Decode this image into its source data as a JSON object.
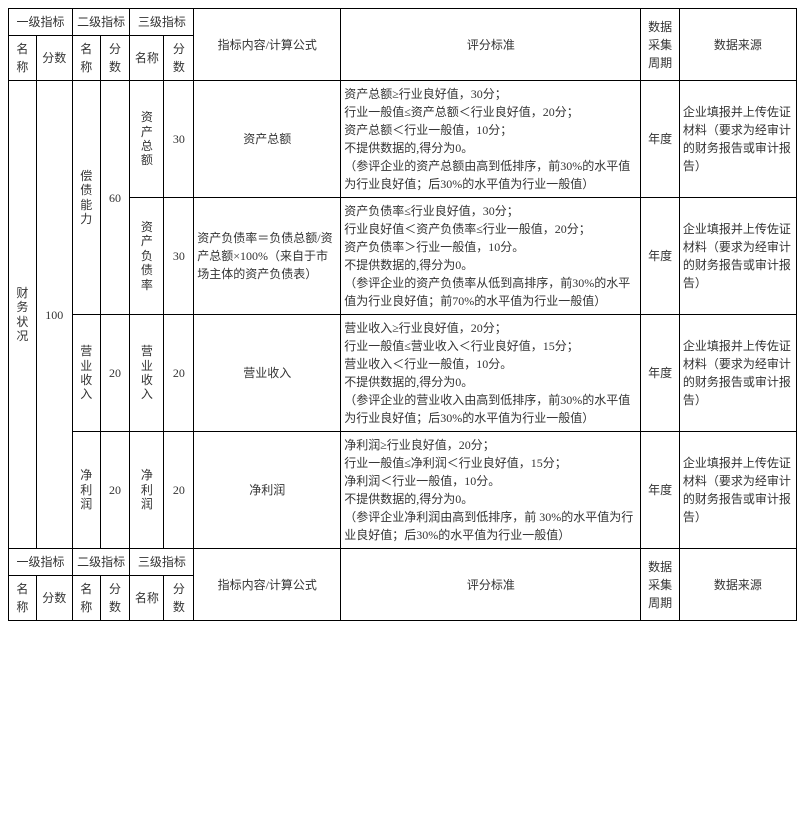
{
  "headers": {
    "l1": "一级指标",
    "l2": "二级指标",
    "l3": "三级指标",
    "name": "名称",
    "score": "分数",
    "content": "指标内容/计算公式",
    "criteria": "评分标准",
    "period": "数据采集周期",
    "source": "数据来源"
  },
  "lvl1": {
    "name": "财务状况",
    "score": "100"
  },
  "lvl2": {
    "a": {
      "name": "偿债能力",
      "score": "60"
    },
    "b": {
      "name": "营业收入",
      "score": "20"
    },
    "c": {
      "name": "净利润",
      "score": "20"
    }
  },
  "rows": {
    "r1": {
      "l3name": "资产总额",
      "l3score": "30",
      "content": "资产总额",
      "criteria": "资产总额≥行业良好值，30分；\n行业一般值≤资产总额＜行业良好值，20分；\n资产总额＜行业一般值，10分；\n不提供数据的,得分为0。\n（参评企业的资产总额由高到低排序，前30%的水平值为行业良好值；后30%的水平值为行业一般值）",
      "period": "年度",
      "source": "企业填报并上传佐证材料（要求为经审计的财务报告或审计报告）"
    },
    "r2": {
      "l3name": "资产负债率",
      "l3score": "30",
      "content": "资产负债率＝负债总额/资产总额×100%（来自于市场主体的资产负债表）",
      "criteria": "资产负债率≤行业良好值，30分；\n行业良好值＜资产负债率≤行业一般值，20分；\n资产负债率＞行业一般值，10分。\n不提供数据的,得分为0。\n（参评企业的资产负债率从低到高排序，前30%的水平值为行业良好值；前70%的水平值为行业一般值）",
      "period": "年度",
      "source": "企业填报并上传佐证材料（要求为经审计的财务报告或审计报告）"
    },
    "r3": {
      "l3name": "营业收入",
      "l3score": "20",
      "content": "营业收入",
      "criteria": "营业收入≥行业良好值，20分；\n行业一般值≤营业收入＜行业良好值，15分；\n营业收入＜行业一般值，10分。\n不提供数据的,得分为0。\n（参评企业的营业收入由高到低排序，前30%的水平值为行业良好值；后30%的水平值为行业一般值）",
      "period": "年度",
      "source": "企业填报并上传佐证材料（要求为经审计的财务报告或审计报告）"
    },
    "r4": {
      "l3name": "净利润",
      "l3score": "20",
      "content": "净利润",
      "criteria": "净利润≥行业良好值，20分；\n行业一般值≤净利润＜行业良好值，15分；\n净利润＜行业一般值，10分。\n不提供数据的,得分为0。\n（参评企业净利润由高到低排序，前 30%的水平值为行业良好值；后30%的水平值为行业一般值）",
      "period": "年度",
      "source": "企业填报并上传佐证材料（要求为经审计的财务报告或审计报告）"
    }
  }
}
